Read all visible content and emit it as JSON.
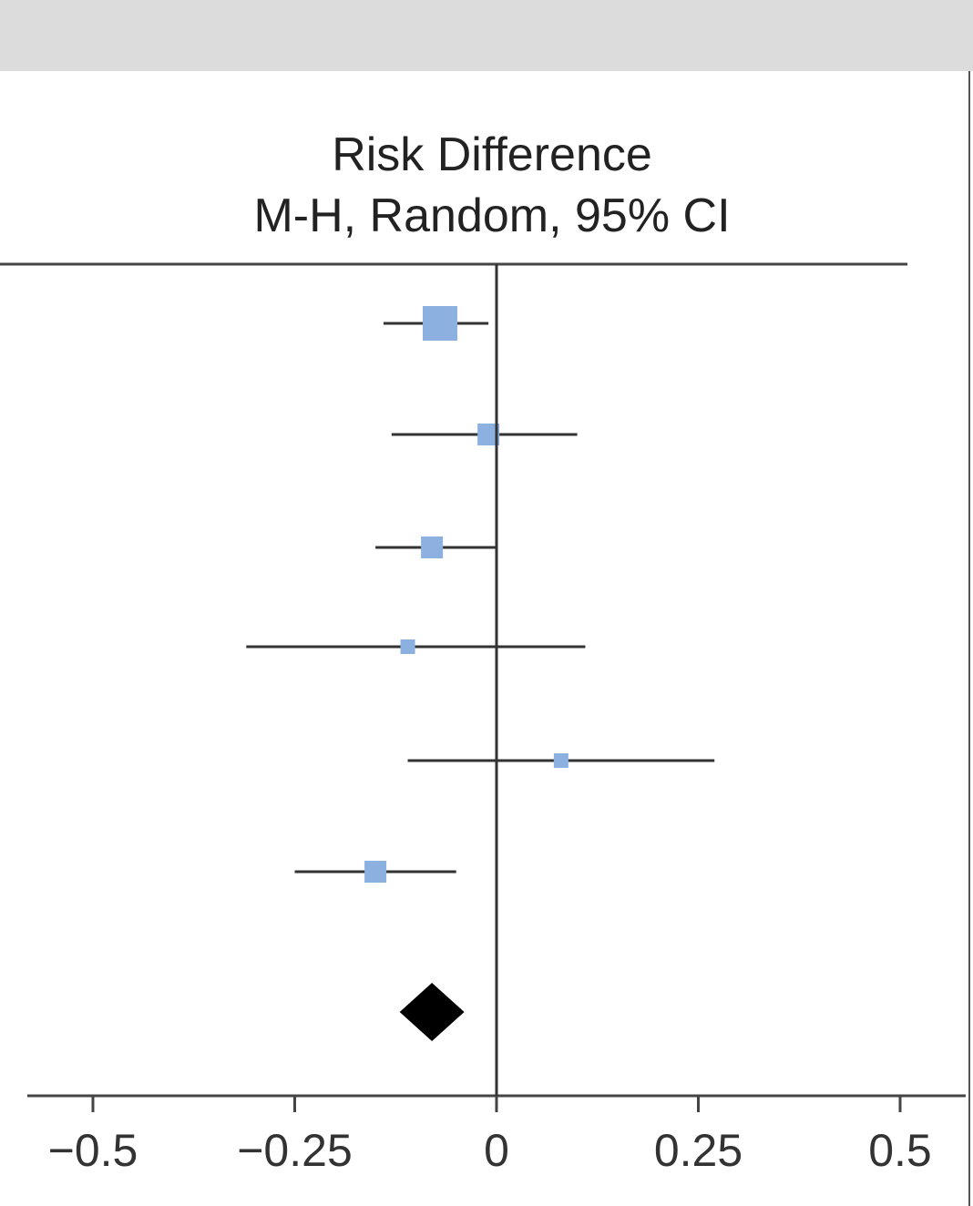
{
  "chart_data": {
    "type": "forest",
    "title_line1": "Risk Difference",
    "title_line2": "M-H, Random, 95% CI",
    "xlim": [
      -0.5,
      0.5
    ],
    "xticks": [
      -0.5,
      -0.25,
      0,
      0.25,
      0.5
    ],
    "xtick_labels": [
      "−0.5",
      "−0.25",
      "0",
      "0.25",
      "0.5"
    ],
    "marker_color": "#8cb0e0",
    "line_color": "#333333",
    "diamond_color": "#000000",
    "studies": [
      {
        "estimate": -0.07,
        "ci": [
          -0.14,
          -0.01
        ],
        "weight": 3
      },
      {
        "estimate": -0.01,
        "ci": [
          -0.13,
          0.1
        ],
        "weight": 2
      },
      {
        "estimate": -0.08,
        "ci": [
          -0.15,
          0.0
        ],
        "weight": 2
      },
      {
        "estimate": -0.11,
        "ci": [
          -0.31,
          0.11
        ],
        "weight": 1
      },
      {
        "estimate": 0.08,
        "ci": [
          -0.11,
          0.27
        ],
        "weight": 1
      },
      {
        "estimate": -0.15,
        "ci": [
          -0.25,
          -0.05
        ],
        "weight": 2
      }
    ],
    "pooled": {
      "estimate": -0.08,
      "ci": [
        -0.12,
        -0.04
      ]
    }
  }
}
